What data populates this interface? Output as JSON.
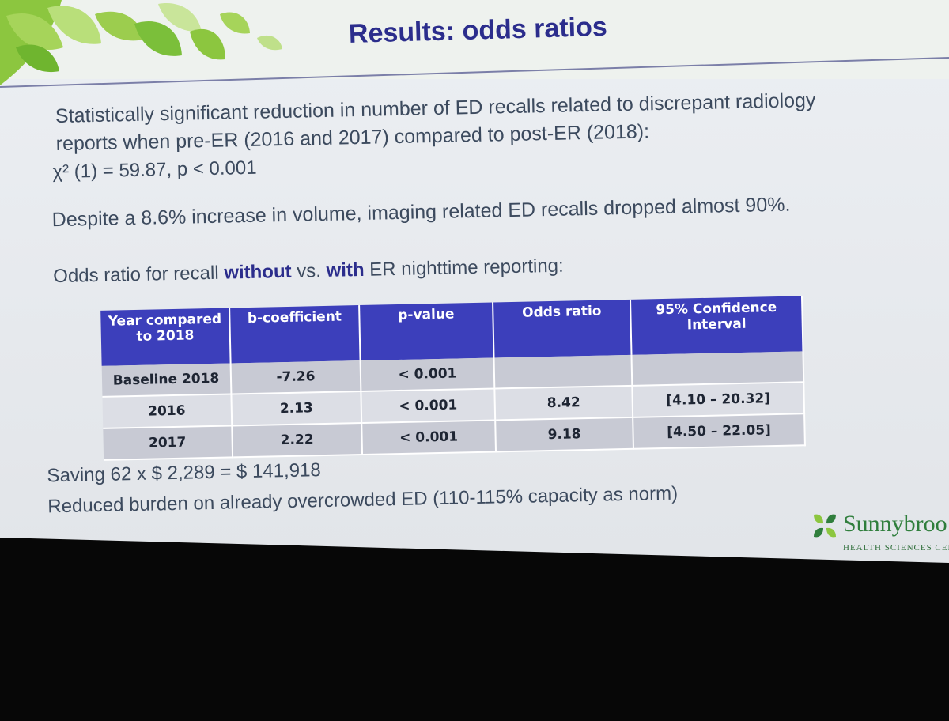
{
  "slide": {
    "title": "Results: odds ratios",
    "paragraphs": {
      "p1_line1": "Statistically significant reduction in number of ED recalls related to discrepant radiology",
      "p1_line2": "reports when pre-ER (2016 and 2017) compared to post-ER (2018):",
      "p1_line3": "χ² (1) = 59.87, p < 0.001",
      "p2": "Despite a 8.6% increase in volume, imaging related ED recalls dropped almost 90%.",
      "p3_pre": "Odds ratio for recall ",
      "p3_bold1": "without",
      "p3_mid": " vs. ",
      "p3_bold2": "with",
      "p3_post": " ER nighttime reporting:",
      "p4": "Saving 62 x $ 2,289 = $ 141,918",
      "p5": "Reduced burden on already overcrowded ED (110-115% capacity as norm)"
    },
    "table": {
      "headers": [
        "Year compared to 2018",
        "b-coefficient",
        "p-value",
        "Odds ratio",
        "95% Confidence Interval"
      ],
      "rows": [
        [
          "Baseline 2018",
          "-7.26",
          "< 0.001",
          "",
          ""
        ],
        [
          "2016",
          "2.13",
          "< 0.001",
          "8.42",
          "[4.10 – 20.32]"
        ],
        [
          "2017",
          "2.22",
          "< 0.001",
          "9.18",
          "[4.50 – 22.05]"
        ]
      ]
    },
    "logo": {
      "name": "Sunnybroo",
      "subtitle": "HEALTH SCIENCES CEN"
    },
    "colors": {
      "title": "#2b2d8c",
      "table_header": "#3c3fbb",
      "leaf_green": "#8cc63f",
      "logo_green": "#2f7e3c"
    }
  }
}
